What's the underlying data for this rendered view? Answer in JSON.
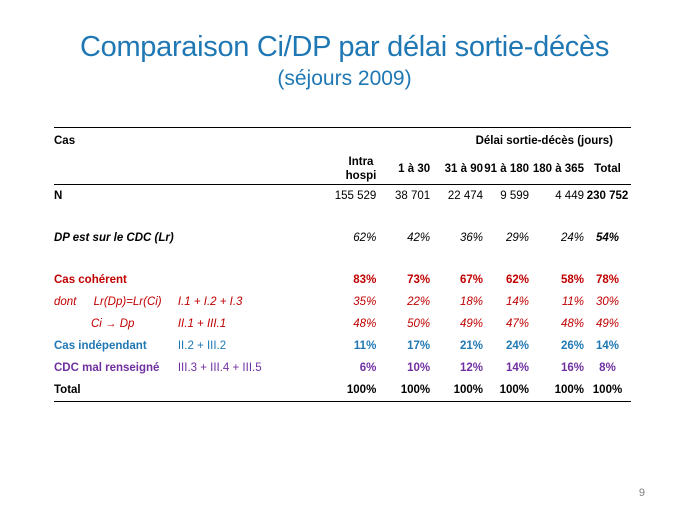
{
  "slide": {
    "title": "Comparaison Ci/DP par délai sortie-décès",
    "subtitle": "(séjours 2009)",
    "page_number": "9"
  },
  "table": {
    "header": {
      "cas": "Cas",
      "group": "Délai sortie-décès (jours)",
      "columns": [
        "Intra hospi",
        "1 à 30",
        "31 à 90",
        "91 à 180",
        "180 à 365",
        "Total"
      ]
    },
    "rows": {
      "n": {
        "label": "N",
        "values": [
          "155 529",
          "38 701",
          "22 474",
          "9 599",
          "4 449",
          "230 752"
        ]
      },
      "dp_cdc": {
        "label": "DP est sur le CDC (Lr)",
        "values": [
          "62%",
          "42%",
          "36%",
          "29%",
          "24%",
          "54%"
        ]
      },
      "coherent": {
        "label": "Cas cohérent",
        "values": [
          "83%",
          "73%",
          "67%",
          "62%",
          "58%",
          "78%"
        ]
      },
      "dont_lr": {
        "prefix": "dont",
        "label": "Lr(Dp)=Lr(Ci)",
        "code": "I.1 + I.2 + I.3",
        "values": [
          "35%",
          "22%",
          "18%",
          "14%",
          "11%",
          "30%"
        ]
      },
      "ci_dp": {
        "label": "Ci → Dp",
        "code": "II.1 + III.1",
        "values": [
          "48%",
          "50%",
          "49%",
          "47%",
          "48%",
          "49%"
        ]
      },
      "independant": {
        "label": "Cas indépendant",
        "code": "II.2 + III.2",
        "values": [
          "11%",
          "17%",
          "21%",
          "24%",
          "26%",
          "14%"
        ]
      },
      "mal_renseigne": {
        "label": "CDC mal renseigné",
        "code": "III.3 + III.4 + III.5",
        "values": [
          "6%",
          "10%",
          "12%",
          "14%",
          "16%",
          "8%"
        ]
      },
      "total": {
        "label": "Total",
        "values": [
          "100%",
          "100%",
          "100%",
          "100%",
          "100%",
          "100%"
        ]
      }
    }
  },
  "colors": {
    "title": "#1F78B4",
    "coherent": "#C00000",
    "independant": "#1F78B4",
    "mal_renseigne": "#7030A0"
  }
}
